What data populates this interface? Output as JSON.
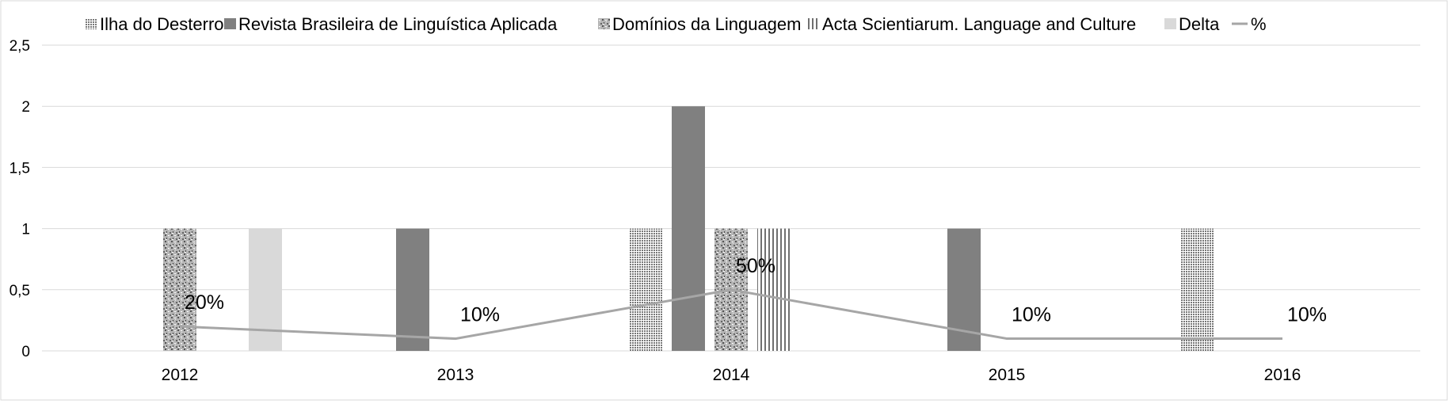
{
  "chart_data": {
    "type": "bar",
    "title": "",
    "xlabel": "",
    "ylabel": "",
    "categories": [
      "2012",
      "2013",
      "2014",
      "2015",
      "2016"
    ],
    "ylim": [
      0,
      2.5
    ],
    "yticks": [
      "0",
      "0,5",
      "1",
      "1,5",
      "2",
      "2,5"
    ],
    "ytick_values": [
      0,
      0.5,
      1,
      1.5,
      2,
      2.5
    ],
    "grid": true,
    "legend_position": "top",
    "series": [
      {
        "name": "Ilha do Desterro",
        "kind": "bar",
        "pattern": "fine-dots",
        "color": "#9a9a9a",
        "values": [
          0,
          0,
          1,
          0,
          1
        ]
      },
      {
        "name": "Revista Brasileira de Linguística Aplicada",
        "kind": "bar",
        "pattern": "solid",
        "color": "#808080",
        "values": [
          0,
          1,
          2,
          1,
          0
        ]
      },
      {
        "name": "Domínios da Linguagem",
        "kind": "bar",
        "pattern": "speckle",
        "color": "#a0a0a0",
        "values": [
          1,
          0,
          1,
          0,
          0
        ]
      },
      {
        "name": "Acta Scientiarum. Language and Culture",
        "kind": "bar",
        "pattern": "vertical-lines",
        "color": "#808080",
        "values": [
          0,
          0,
          1,
          0,
          0
        ]
      },
      {
        "name": "Delta",
        "kind": "bar",
        "pattern": "solid",
        "color": "#d9d9d9",
        "values": [
          1,
          0,
          0,
          0,
          0
        ]
      },
      {
        "name": "%",
        "kind": "line",
        "color": "#a6a6a6",
        "values": [
          0.2,
          0.1,
          0.5,
          0.1,
          0.1
        ],
        "labels": [
          "20%",
          "10%",
          "50%",
          "10%",
          "10%"
        ]
      }
    ]
  }
}
